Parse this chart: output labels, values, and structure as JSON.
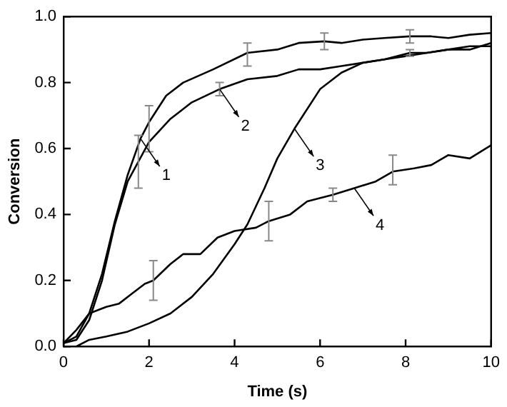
{
  "chart_data": {
    "type": "line",
    "xlabel": "Time (s)",
    "ylabel": "Conversion",
    "xlim": [
      0,
      10
    ],
    "xticks": [
      0,
      2,
      4,
      6,
      8,
      10
    ],
    "ylim": [
      0,
      1
    ],
    "yticks": [
      {
        "value": 0,
        "label": "0.0"
      },
      0.2,
      0.4,
      0.6,
      0.8,
      {
        "value": 1,
        "label": "1.0"
      }
    ],
    "grid": false,
    "legend": false,
    "marker": "none",
    "line_style": "solid",
    "series": [
      {
        "color": "#000000",
        "x": [
          0,
          0.3,
          0.6,
          0.9,
          1.2,
          1.5,
          1.8,
          2.0,
          2.4,
          2.8,
          3.5,
          4.3,
          5,
          5.5,
          6.1,
          6.5,
          7,
          7.5,
          8.1,
          8.6,
          9,
          9.5,
          10
        ],
        "values": [
          0.01,
          0.03,
          0.1,
          0.22,
          0.38,
          0.52,
          0.63,
          0.68,
          0.76,
          0.8,
          0.84,
          0.89,
          0.9,
          0.92,
          0.925,
          0.92,
          0.93,
          0.935,
          0.94,
          0.94,
          0.935,
          0.945,
          0.95
        ],
        "errors": [
          null,
          null,
          null,
          null,
          null,
          null,
          null,
          [
            0.59,
            0.73
          ],
          null,
          null,
          null,
          [
            0.85,
            0.92
          ],
          null,
          null,
          [
            0.9,
            0.95
          ],
          null,
          null,
          null,
          [
            0.92,
            0.96
          ],
          null,
          null,
          null,
          null
        ]
      },
      {
        "color": "#000000",
        "x": [
          0,
          0.3,
          0.6,
          0.9,
          1.2,
          1.5,
          1.75,
          2.0,
          2.5,
          3.0,
          3.65,
          4.3,
          5,
          5.5,
          6,
          6.5,
          7,
          7.5,
          8.1,
          8.5,
          9,
          9.5,
          10
        ],
        "values": [
          0.01,
          0.02,
          0.08,
          0.2,
          0.37,
          0.5,
          0.56,
          0.62,
          0.69,
          0.74,
          0.78,
          0.81,
          0.82,
          0.84,
          0.84,
          0.85,
          0.86,
          0.87,
          0.89,
          0.89,
          0.9,
          0.91,
          0.91
        ],
        "errors": [
          null,
          null,
          null,
          null,
          null,
          null,
          [
            0.48,
            0.64
          ],
          null,
          null,
          null,
          [
            0.76,
            0.8
          ],
          null,
          null,
          null,
          null,
          null,
          null,
          null,
          [
            0.88,
            0.9
          ],
          null,
          null,
          null,
          null
        ]
      },
      {
        "color": "#000000",
        "x": [
          0,
          0.3,
          0.6,
          1,
          1.5,
          2,
          2.5,
          3,
          3.5,
          4,
          4.3,
          4.7,
          5,
          5.4,
          6,
          6.5,
          7,
          7.5,
          8,
          8.5,
          9,
          9.5,
          10
        ],
        "values": [
          0,
          0,
          0.02,
          0.03,
          0.045,
          0.07,
          0.1,
          0.15,
          0.22,
          0.31,
          0.37,
          0.48,
          0.57,
          0.66,
          0.78,
          0.83,
          0.86,
          0.87,
          0.88,
          0.89,
          0.9,
          0.9,
          0.92
        ]
      },
      {
        "color": "#000000",
        "x": [
          0,
          0.3,
          0.6,
          1,
          1.3,
          1.6,
          1.9,
          2.1,
          2.5,
          2.8,
          3.2,
          3.6,
          4,
          4.5,
          4.8,
          5.3,
          5.7,
          6.3,
          6.8,
          7.3,
          7.7,
          8.2,
          8.6,
          9,
          9.5,
          10
        ],
        "values": [
          0.01,
          0.05,
          0.1,
          0.12,
          0.13,
          0.16,
          0.19,
          0.2,
          0.25,
          0.28,
          0.28,
          0.33,
          0.35,
          0.36,
          0.38,
          0.4,
          0.44,
          0.46,
          0.48,
          0.5,
          0.53,
          0.54,
          0.55,
          0.58,
          0.57,
          0.61
        ],
        "errors": [
          null,
          null,
          null,
          null,
          null,
          null,
          null,
          [
            0.14,
            0.26
          ],
          null,
          null,
          null,
          null,
          null,
          null,
          [
            0.32,
            0.44
          ],
          null,
          null,
          [
            0.44,
            0.48
          ],
          null,
          null,
          [
            0.49,
            0.58
          ],
          null,
          null,
          null,
          null,
          null
        ]
      }
    ],
    "annotations": [
      {
        "text": "1",
        "x": 1.8,
        "y": 0.63
      },
      {
        "text": "2",
        "x": 3.65,
        "y": 0.78
      },
      {
        "text": "3",
        "x": 5.4,
        "y": 0.66
      },
      {
        "text": "4",
        "x": 6.8,
        "y": 0.48
      }
    ]
  }
}
